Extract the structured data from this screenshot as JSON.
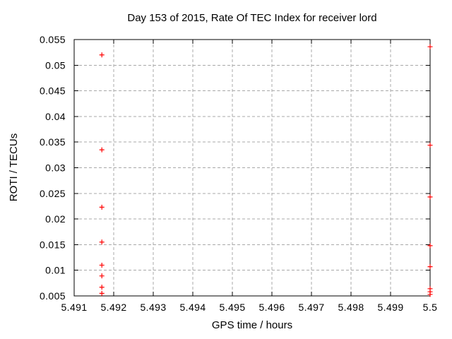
{
  "title": "Day 153 of 2015, Rate Of TEC Index for receiver lord",
  "x_axis": {
    "label": "GPS time / hours",
    "tick_labels": [
      "5.491",
      "5.492",
      "5.493",
      "5.494",
      "5.495",
      "5.496",
      "5.497",
      "5.498",
      "5.499",
      "5.5"
    ]
  },
  "y_axis": {
    "label": "ROTI / TECUs",
    "tick_labels": [
      "0.005",
      "0.01",
      "0.015",
      "0.02",
      "0.025",
      "0.03",
      "0.035",
      "0.04",
      "0.045",
      "0.05",
      "0.055"
    ]
  },
  "colors": {
    "marker": "#ff0000",
    "grid": "#a8a8a8",
    "axis": "#000000",
    "text": "#000000",
    "background": "#ffffff"
  },
  "chart_data": {
    "type": "scatter",
    "title": "Day 153 of 2015, Rate Of TEC Index for receiver lord",
    "xlabel": "GPS time / hours",
    "ylabel": "ROTI / TECUs",
    "xlim": [
      5.491,
      5.5
    ],
    "ylim": [
      0.005,
      0.055
    ],
    "x_ticks": [
      5.491,
      5.492,
      5.493,
      5.494,
      5.495,
      5.496,
      5.497,
      5.498,
      5.499,
      5.5
    ],
    "y_ticks": [
      0.005,
      0.01,
      0.015,
      0.02,
      0.025,
      0.03,
      0.035,
      0.04,
      0.045,
      0.05,
      0.055
    ],
    "grid": true,
    "legend": false,
    "marker": "plus",
    "series": [
      {
        "name": "ROTI",
        "color": "#ff0000",
        "points": [
          [
            5.4917,
            0.052
          ],
          [
            5.4917,
            0.0335
          ],
          [
            5.4917,
            0.0223
          ],
          [
            5.4917,
            0.0155
          ],
          [
            5.4917,
            0.011
          ],
          [
            5.4917,
            0.0089
          ],
          [
            5.4917,
            0.0067
          ],
          [
            5.4917,
            0.0055
          ],
          [
            5.5,
            0.0536
          ],
          [
            5.5,
            0.0344
          ],
          [
            5.5,
            0.0243
          ],
          [
            5.5,
            0.0148
          ],
          [
            5.5,
            0.0107
          ],
          [
            5.5,
            0.0064
          ],
          [
            5.5,
            0.0058
          ],
          [
            5.5,
            0.0053
          ]
        ]
      }
    ]
  }
}
